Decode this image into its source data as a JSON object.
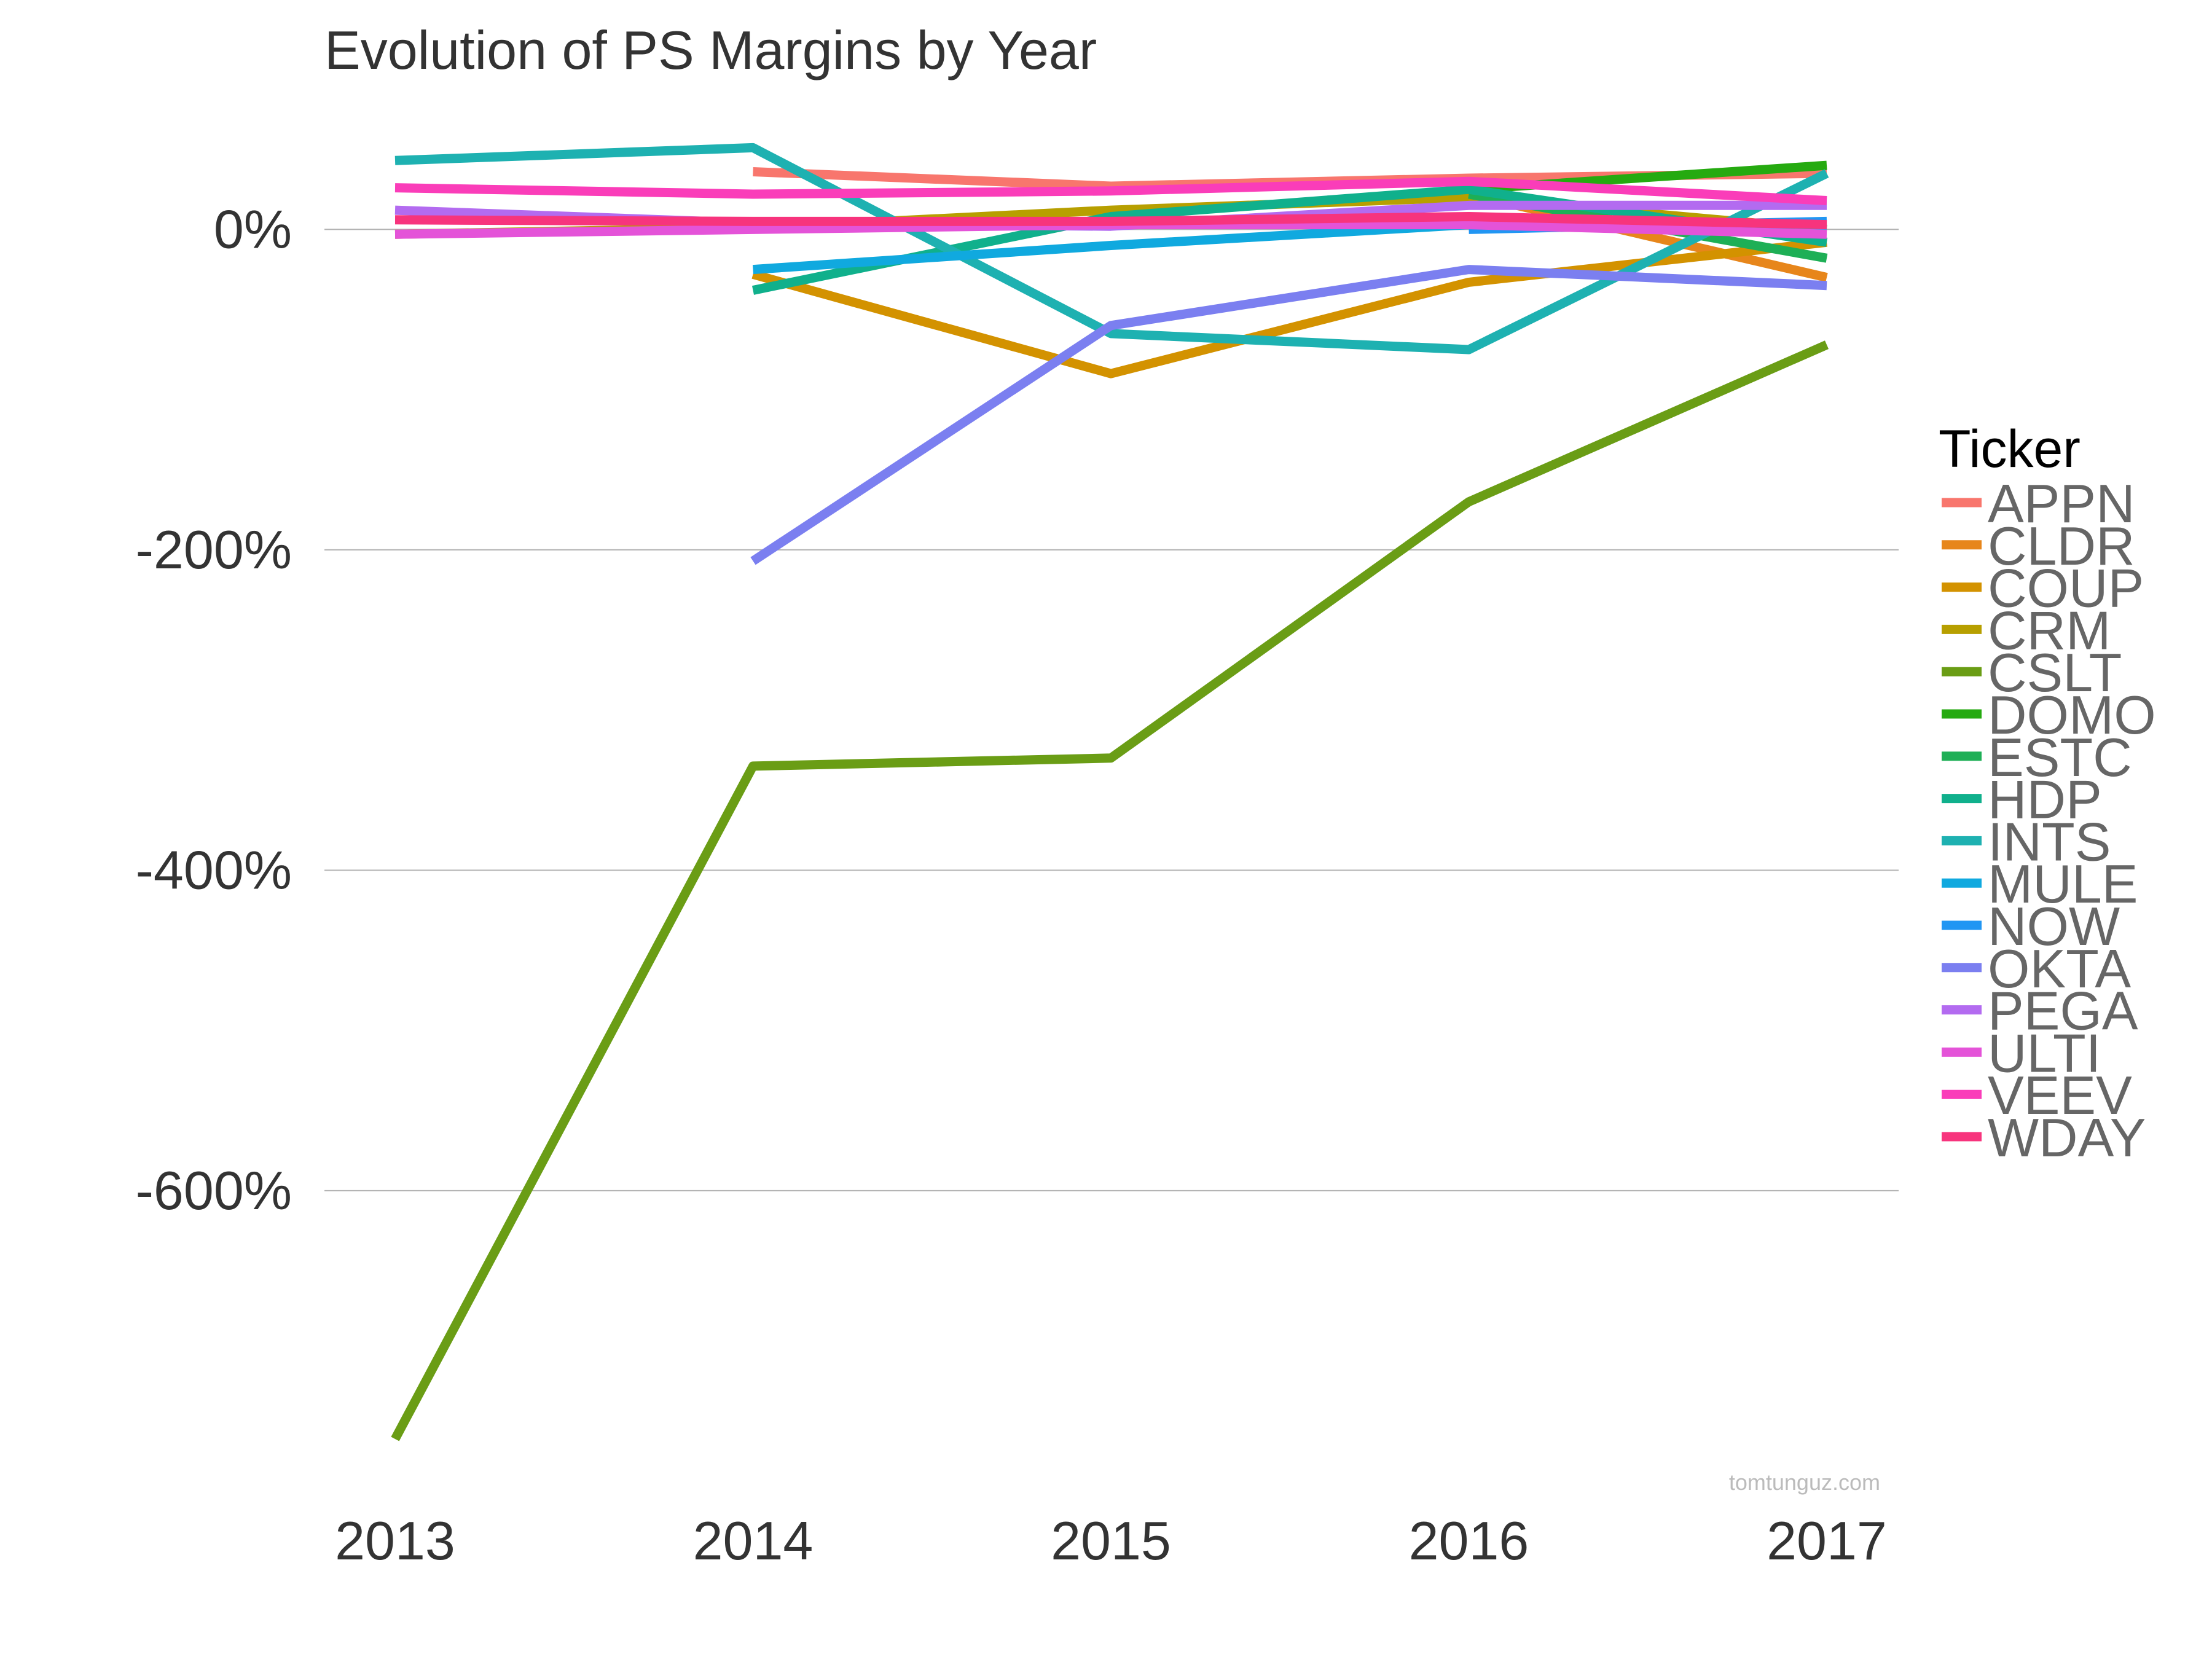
{
  "chart_data": {
    "type": "line",
    "title": "Evolution of PS Margins by Year",
    "xlabel": "",
    "ylabel": "",
    "x": [
      2013,
      2014,
      2015,
      2016,
      2017
    ],
    "x_tick_labels": [
      "2013",
      "2014",
      "2015",
      "2016",
      "2017"
    ],
    "ylim": [
      -760,
      55
    ],
    "y_ticks": [
      0,
      -200,
      -400,
      -600
    ],
    "y_tick_labels": [
      "0%",
      "-200%",
      "-400%",
      "-600%"
    ],
    "grid": true,
    "legend_title": "Ticker",
    "legend_position": "right",
    "watermark": "tomtunguz.com",
    "series": [
      {
        "name": "APPN",
        "color": "#F8766D",
        "values": [
          null,
          36,
          27,
          32,
          35
        ]
      },
      {
        "name": "CLDR",
        "color": "#E7861B",
        "values": [
          null,
          null,
          null,
          22,
          -30
        ]
      },
      {
        "name": "COUP",
        "color": "#D39200",
        "values": [
          null,
          -28,
          -90,
          -33,
          -8
        ]
      },
      {
        "name": "CRM",
        "color": "#B79F00",
        "values": [
          -3,
          1,
          12,
          20,
          0
        ]
      },
      {
        "name": "CSLT",
        "color": "#6A9D15",
        "values": [
          -755,
          -335,
          -330,
          -170,
          -72
        ]
      },
      {
        "name": "DOMO",
        "color": "#25AA10",
        "values": [
          null,
          null,
          null,
          25,
          40
        ]
      },
      {
        "name": "ESTC",
        "color": "#1EAF56",
        "values": [
          null,
          null,
          null,
          22,
          -18
        ]
      },
      {
        "name": "HDP",
        "color": "#10B08C",
        "values": [
          null,
          -38,
          8,
          25,
          -8
        ]
      },
      {
        "name": "INTS",
        "color": "#1EB1B1",
        "values": [
          43,
          51,
          -65,
          -75,
          35
        ]
      },
      {
        "name": "MULE",
        "color": "#10A9DF",
        "values": [
          null,
          -25,
          -10,
          3,
          2
        ]
      },
      {
        "name": "NOW",
        "color": "#2196F3",
        "values": [
          null,
          null,
          null,
          0,
          5
        ]
      },
      {
        "name": "OKTA",
        "color": "#7B7FF0",
        "values": [
          null,
          -207,
          -60,
          -25,
          -35
        ]
      },
      {
        "name": "PEGA",
        "color": "#B36BF0",
        "values": [
          12,
          4,
          2,
          15,
          15
        ]
      },
      {
        "name": "ULTI",
        "color": "#E453D8",
        "values": [
          -3,
          0,
          3,
          3,
          -3
        ]
      },
      {
        "name": "VEEV",
        "color": "#FA3DB9",
        "values": [
          26,
          22,
          24,
          30,
          18
        ]
      },
      {
        "name": "WDAY",
        "color": "#F7347D",
        "values": [
          6,
          5,
          5,
          8,
          3
        ]
      }
    ]
  }
}
